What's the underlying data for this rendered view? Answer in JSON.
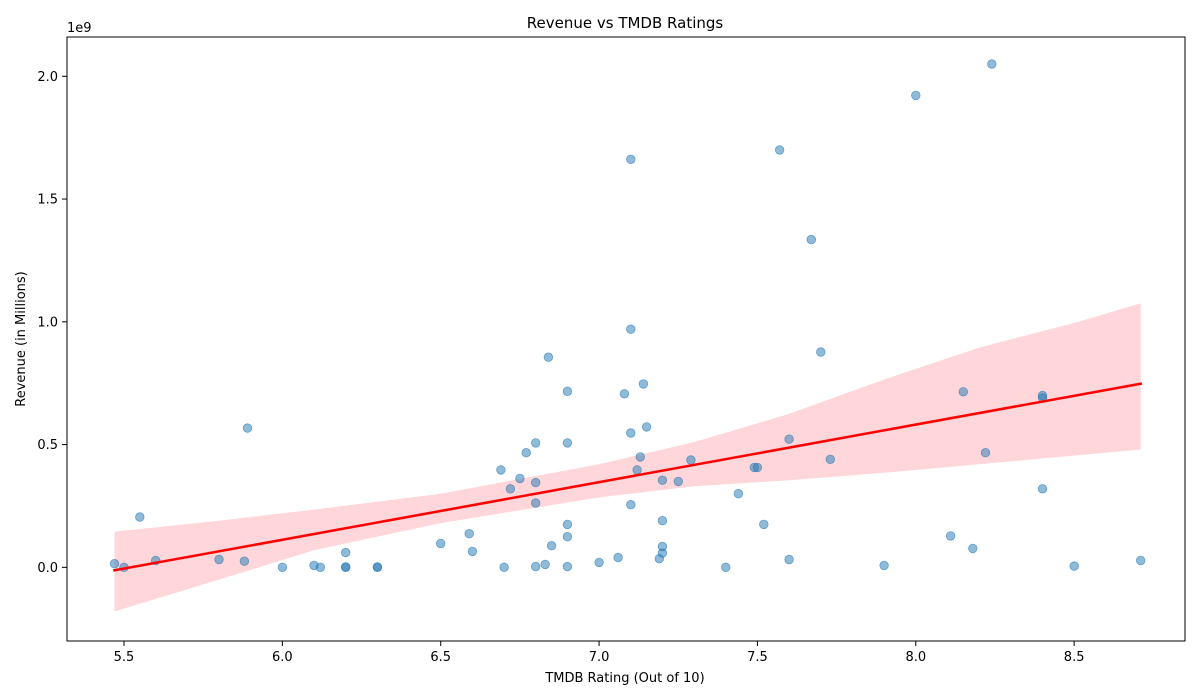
{
  "chart_data": {
    "type": "scatter",
    "title": "Revenue vs TMDB Ratings",
    "xlabel": "TMDB Rating (Out of 10)",
    "ylabel": "Revenue (in Millions)",
    "y_offset_label": "1e9",
    "xlim": [
      5.32,
      8.85
    ],
    "ylim": [
      -0.3,
      2.16
    ],
    "x_ticks": [
      5.5,
      6.0,
      6.5,
      7.0,
      7.5,
      8.0,
      8.5
    ],
    "x_tick_labels": [
      "5.5",
      "6.0",
      "6.5",
      "7.0",
      "7.5",
      "8.0",
      "8.5"
    ],
    "y_ticks": [
      0.0,
      0.5,
      1.0,
      1.5,
      2.0
    ],
    "y_tick_labels": [
      "0.0",
      "0.5",
      "1.0",
      "1.5",
      "2.0"
    ],
    "grid": false,
    "points_color": "#1f77b4",
    "regression_color": "#ff0000",
    "band_color": "#ffc0c4",
    "points": [
      {
        "x": 5.47,
        "y": 0.015
      },
      {
        "x": 5.5,
        "y": 0.0
      },
      {
        "x": 5.55,
        "y": 0.205
      },
      {
        "x": 5.6,
        "y": 0.028
      },
      {
        "x": 5.8,
        "y": 0.032
      },
      {
        "x": 5.88,
        "y": 0.025
      },
      {
        "x": 5.89,
        "y": 0.567
      },
      {
        "x": 6.0,
        "y": 0.0
      },
      {
        "x": 6.1,
        "y": 0.008
      },
      {
        "x": 6.12,
        "y": 0.0
      },
      {
        "x": 6.2,
        "y": 0.06
      },
      {
        "x": 6.2,
        "y": 0.002
      },
      {
        "x": 6.2,
        "y": 0.0
      },
      {
        "x": 6.3,
        "y": 0.002
      },
      {
        "x": 6.3,
        "y": 0.0
      },
      {
        "x": 6.5,
        "y": 0.097
      },
      {
        "x": 6.59,
        "y": 0.137
      },
      {
        "x": 6.6,
        "y": 0.065
      },
      {
        "x": 6.69,
        "y": 0.397
      },
      {
        "x": 6.7,
        "y": 0.0
      },
      {
        "x": 6.72,
        "y": 0.32
      },
      {
        "x": 6.75,
        "y": 0.362
      },
      {
        "x": 6.77,
        "y": 0.467
      },
      {
        "x": 6.8,
        "y": 0.507
      },
      {
        "x": 6.8,
        "y": 0.262
      },
      {
        "x": 6.8,
        "y": 0.345
      },
      {
        "x": 6.8,
        "y": 0.003
      },
      {
        "x": 6.83,
        "y": 0.012
      },
      {
        "x": 6.84,
        "y": 0.856
      },
      {
        "x": 6.85,
        "y": 0.088
      },
      {
        "x": 6.9,
        "y": 0.717
      },
      {
        "x": 6.9,
        "y": 0.507
      },
      {
        "x": 6.9,
        "y": 0.175
      },
      {
        "x": 6.9,
        "y": 0.125
      },
      {
        "x": 6.9,
        "y": 0.003
      },
      {
        "x": 7.0,
        "y": 0.02
      },
      {
        "x": 7.06,
        "y": 0.04
      },
      {
        "x": 7.08,
        "y": 0.707
      },
      {
        "x": 7.1,
        "y": 1.662
      },
      {
        "x": 7.1,
        "y": 0.97
      },
      {
        "x": 7.1,
        "y": 0.547
      },
      {
        "x": 7.1,
        "y": 0.255
      },
      {
        "x": 7.12,
        "y": 0.397
      },
      {
        "x": 7.13,
        "y": 0.45
      },
      {
        "x": 7.14,
        "y": 0.747
      },
      {
        "x": 7.15,
        "y": 0.572
      },
      {
        "x": 7.19,
        "y": 0.035
      },
      {
        "x": 7.2,
        "y": 0.355
      },
      {
        "x": 7.2,
        "y": 0.19
      },
      {
        "x": 7.2,
        "y": 0.085
      },
      {
        "x": 7.2,
        "y": 0.058
      },
      {
        "x": 7.25,
        "y": 0.35
      },
      {
        "x": 7.29,
        "y": 0.437
      },
      {
        "x": 7.4,
        "y": 0.0
      },
      {
        "x": 7.44,
        "y": 0.3
      },
      {
        "x": 7.49,
        "y": 0.407
      },
      {
        "x": 7.5,
        "y": 0.407
      },
      {
        "x": 7.52,
        "y": 0.175
      },
      {
        "x": 7.57,
        "y": 1.7
      },
      {
        "x": 7.6,
        "y": 0.522
      },
      {
        "x": 7.6,
        "y": 0.032
      },
      {
        "x": 7.67,
        "y": 1.335
      },
      {
        "x": 7.7,
        "y": 0.877
      },
      {
        "x": 7.73,
        "y": 0.44
      },
      {
        "x": 7.9,
        "y": 0.008
      },
      {
        "x": 8.0,
        "y": 1.922
      },
      {
        "x": 8.11,
        "y": 0.128
      },
      {
        "x": 8.15,
        "y": 0.715
      },
      {
        "x": 8.18,
        "y": 0.077
      },
      {
        "x": 8.22,
        "y": 0.467
      },
      {
        "x": 8.24,
        "y": 2.05
      },
      {
        "x": 8.4,
        "y": 0.7
      },
      {
        "x": 8.4,
        "y": 0.69
      },
      {
        "x": 8.4,
        "y": 0.32
      },
      {
        "x": 8.5,
        "y": 0.005
      },
      {
        "x": 8.71,
        "y": 0.028
      }
    ],
    "regression_line": {
      "x": [
        5.47,
        8.71
      ],
      "y": [
        -0.012,
        0.748
      ]
    },
    "confidence_band": {
      "x": [
        5.47,
        5.8,
        6.1,
        6.5,
        7.0,
        7.3,
        7.6,
        7.9,
        8.2,
        8.5,
        8.71
      ],
      "upper": [
        0.145,
        0.19,
        0.235,
        0.3,
        0.42,
        0.51,
        0.625,
        0.765,
        0.895,
        0.995,
        1.075
      ],
      "lower": [
        -0.18,
        -0.05,
        0.07,
        0.18,
        0.285,
        0.33,
        0.355,
        0.385,
        0.42,
        0.455,
        0.48
      ]
    }
  }
}
